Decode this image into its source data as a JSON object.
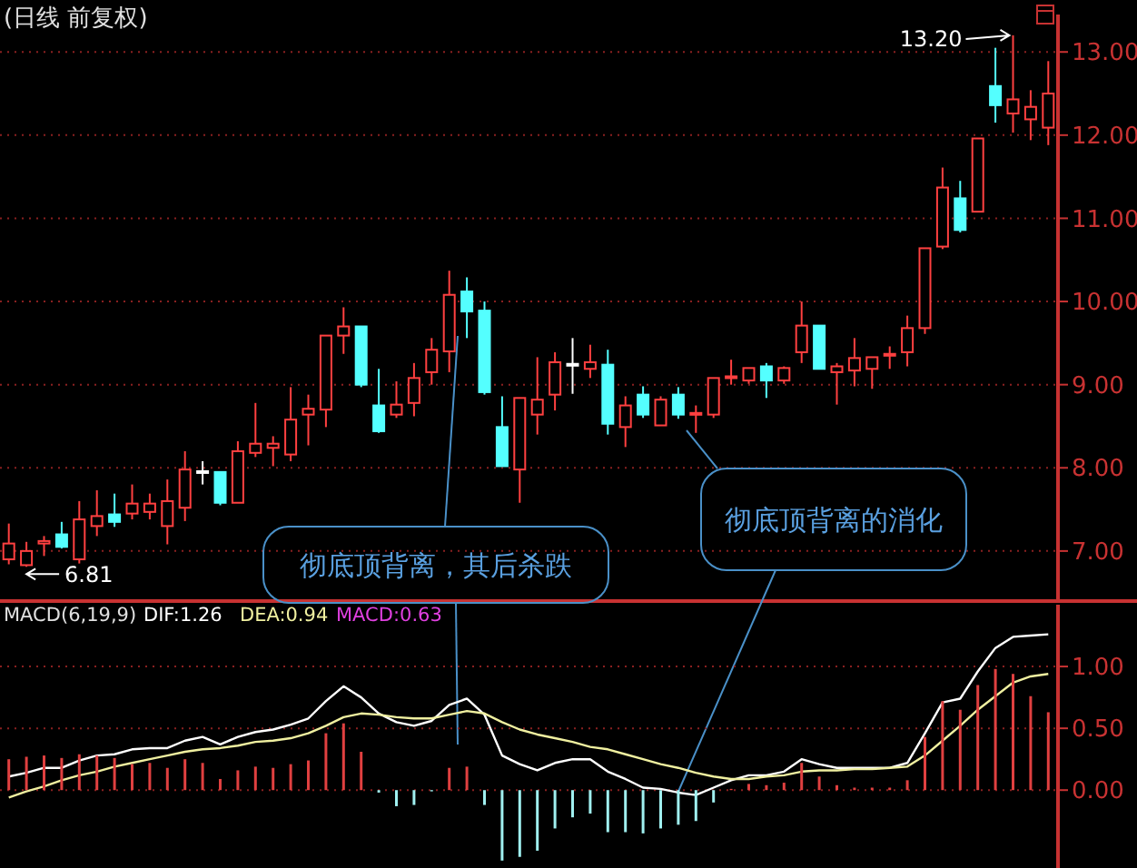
{
  "chart_data": [
    {
      "type": "candlestick",
      "title": "(日线 前复权)",
      "categories": [
        null,
        null,
        null,
        null,
        null,
        null,
        null,
        null,
        null,
        null,
        null,
        null,
        null,
        null,
        null,
        null,
        null,
        null,
        null,
        null,
        null,
        null,
        null,
        null,
        null,
        null,
        null,
        null,
        null,
        null,
        null,
        null,
        null,
        null,
        null,
        null,
        null,
        null,
        null,
        null,
        null,
        null,
        null,
        null,
        null,
        null,
        null,
        null,
        null,
        null,
        null,
        null,
        null,
        null,
        null,
        null,
        null,
        null,
        null,
        null
      ],
      "ohlc": [
        [
          6.9,
          7.33,
          6.84,
          7.09
        ],
        [
          6.83,
          7.11,
          6.81,
          7.0
        ],
        [
          7.09,
          7.18,
          6.94,
          7.12
        ],
        [
          7.2,
          7.35,
          7.03,
          7.05
        ],
        [
          6.9,
          7.6,
          6.85,
          7.38
        ],
        [
          7.3,
          7.73,
          7.18,
          7.42
        ],
        [
          7.44,
          7.69,
          7.29,
          7.35
        ],
        [
          7.45,
          7.8,
          7.38,
          7.57
        ],
        [
          7.47,
          7.69,
          7.38,
          7.57
        ],
        [
          7.3,
          7.86,
          7.08,
          7.6
        ],
        [
          7.52,
          8.2,
          7.36,
          7.98
        ],
        [
          7.96,
          8.08,
          7.8,
          7.95
        ],
        [
          7.95,
          7.95,
          7.55,
          7.58
        ],
        [
          7.58,
          8.32,
          7.58,
          8.2
        ],
        [
          8.18,
          8.78,
          8.13,
          8.29
        ],
        [
          8.24,
          8.38,
          8.02,
          8.29
        ],
        [
          8.16,
          8.97,
          8.08,
          8.58
        ],
        [
          8.64,
          8.88,
          8.27,
          8.71
        ],
        [
          8.7,
          9.59,
          8.49,
          9.59
        ],
        [
          9.59,
          9.93,
          9.37,
          9.7
        ],
        [
          9.7,
          9.7,
          8.97,
          9.0
        ],
        [
          8.75,
          9.19,
          8.42,
          8.44
        ],
        [
          8.64,
          9.04,
          8.6,
          8.76
        ],
        [
          8.78,
          9.26,
          8.62,
          9.08
        ],
        [
          9.15,
          9.56,
          9.0,
          9.42
        ],
        [
          9.4,
          10.37,
          9.15,
          10.08
        ],
        [
          10.12,
          10.29,
          9.56,
          9.88
        ],
        [
          9.89,
          10.0,
          8.88,
          8.91
        ],
        [
          8.49,
          8.86,
          8.02,
          8.02
        ],
        [
          7.98,
          8.84,
          7.58,
          8.84
        ],
        [
          8.64,
          9.33,
          8.4,
          8.82
        ],
        [
          8.88,
          9.39,
          8.69,
          9.27
        ],
        [
          9.25,
          9.56,
          8.89,
          9.24
        ],
        [
          9.19,
          9.48,
          9.08,
          9.27
        ],
        [
          9.24,
          9.42,
          8.4,
          8.53
        ],
        [
          8.49,
          8.86,
          8.25,
          8.75
        ],
        [
          8.88,
          8.98,
          8.6,
          8.64
        ],
        [
          8.51,
          8.86,
          8.51,
          8.82
        ],
        [
          8.88,
          8.97,
          8.59,
          8.64
        ],
        [
          8.64,
          8.75,
          8.42,
          8.66
        ],
        [
          8.64,
          9.08,
          8.6,
          9.08
        ],
        [
          9.08,
          9.3,
          9.0,
          9.1
        ],
        [
          9.05,
          9.2,
          9.01,
          9.2
        ],
        [
          9.22,
          9.26,
          8.84,
          9.05
        ],
        [
          9.05,
          9.22,
          9.01,
          9.2
        ],
        [
          9.39,
          10.0,
          9.26,
          9.71
        ],
        [
          9.71,
          9.71,
          9.19,
          9.19
        ],
        [
          9.15,
          9.26,
          8.76,
          9.22
        ],
        [
          9.17,
          9.56,
          8.98,
          9.32
        ],
        [
          9.19,
          9.33,
          8.95,
          9.33
        ],
        [
          9.35,
          9.46,
          9.19,
          9.37
        ],
        [
          9.39,
          9.83,
          9.22,
          9.68
        ],
        [
          9.68,
          10.64,
          9.61,
          10.64
        ],
        [
          10.66,
          11.61,
          10.63,
          11.37
        ],
        [
          11.24,
          11.45,
          10.83,
          10.86
        ],
        [
          11.08,
          11.96,
          11.08,
          11.96
        ],
        [
          12.59,
          13.05,
          12.15,
          12.36
        ],
        [
          12.26,
          13.2,
          12.03,
          12.43
        ],
        [
          12.19,
          12.54,
          11.94,
          12.34
        ],
        [
          12.09,
          12.89,
          11.88,
          12.5
        ]
      ],
      "colors": [
        "#ff4040",
        "#ff4040",
        "#ff4040",
        "#54ffff",
        "#ff4040",
        "#ff4040",
        "#54ffff",
        "#ff4040",
        "#ff4040",
        "#ff4040",
        "#ff4040",
        "#ffffff",
        "#54ffff",
        "#ff4040",
        "#ff4040",
        "#ff4040",
        "#ff4040",
        "#ff4040",
        "#ff4040",
        "#ff4040",
        "#54ffff",
        "#54ffff",
        "#ff4040",
        "#ff4040",
        "#ff4040",
        "#ff4040",
        "#54ffff",
        "#54ffff",
        "#54ffff",
        "#ff4040",
        "#ff4040",
        "#ff4040",
        "#ffffff",
        "#ff4040",
        "#54ffff",
        "#ff4040",
        "#54ffff",
        "#ff4040",
        "#54ffff",
        "#ff4040",
        "#ff4040",
        "#ff4040",
        "#ff4040",
        "#54ffff",
        "#ff4040",
        "#ff4040",
        "#54ffff",
        "#ff4040",
        "#ff4040",
        "#ff4040",
        "#ff4040",
        "#ff4040",
        "#ff4040",
        "#ff4040",
        "#54ffff",
        "#ff4040",
        "#54ffff",
        "#ff4040",
        "#ff4040",
        "#ff4040"
      ],
      "ylim": [
        6.42,
        13.45
      ],
      "yticks": [
        {
          "value": 7,
          "label": "7.00"
        },
        {
          "value": 8,
          "label": "8.00"
        },
        {
          "value": 9,
          "label": "9.00"
        },
        {
          "value": 10,
          "label": "10.00"
        },
        {
          "value": 11,
          "label": "11.00"
        },
        {
          "value": 12,
          "label": "12.00"
        },
        {
          "value": 13,
          "label": "13.00"
        }
      ],
      "grid": "y",
      "tick_labels": "y",
      "annotations": [
        "彻底顶背离，其后杀跌",
        "彻底顶背离的消化",
        "13.20",
        "6.81"
      ]
    },
    {
      "type": "bar",
      "title": "MACD(6,19,9)",
      "categories": [
        null,
        null,
        null,
        null,
        null,
        null,
        null,
        null,
        null,
        null,
        null,
        null,
        null,
        null,
        null,
        null,
        null,
        null,
        null,
        null,
        null,
        null,
        null,
        null,
        null,
        null,
        null,
        null,
        null,
        null,
        null,
        null,
        null,
        null,
        null,
        null,
        null,
        null,
        null,
        null,
        null,
        null,
        null,
        null,
        null,
        null,
        null,
        null,
        null,
        null,
        null,
        null,
        null,
        null,
        null,
        null,
        null,
        null,
        null,
        null
      ],
      "series": [
        {
          "type": "line",
          "name": "DIF:1.26",
          "color": "#ffffff",
          "values": [
            0.11,
            0.14,
            0.18,
            0.18,
            0.24,
            0.28,
            0.29,
            0.33,
            0.34,
            0.34,
            0.4,
            0.43,
            0.37,
            0.43,
            0.47,
            0.49,
            0.53,
            0.58,
            0.72,
            0.84,
            0.75,
            0.62,
            0.55,
            0.52,
            0.56,
            0.69,
            0.74,
            0.61,
            0.28,
            0.21,
            0.16,
            0.22,
            0.25,
            0.25,
            0.15,
            0.09,
            0.02,
            0.01,
            -0.02,
            -0.04,
            0.02,
            0.08,
            0.12,
            0.12,
            0.15,
            0.25,
            0.21,
            0.18,
            0.18,
            0.18,
            0.18,
            0.22,
            0.46,
            0.71,
            0.74,
            0.96,
            1.15,
            1.24,
            1.25,
            1.26
          ]
        },
        {
          "type": "line",
          "name": "DEA:0.94",
          "color": "#f0f0a0",
          "values": [
            -0.06,
            -0.01,
            0.03,
            0.08,
            0.12,
            0.15,
            0.19,
            0.22,
            0.25,
            0.28,
            0.31,
            0.33,
            0.34,
            0.36,
            0.39,
            0.4,
            0.42,
            0.46,
            0.52,
            0.59,
            0.62,
            0.61,
            0.59,
            0.58,
            0.58,
            0.61,
            0.64,
            0.62,
            0.55,
            0.49,
            0.45,
            0.42,
            0.39,
            0.35,
            0.33,
            0.29,
            0.25,
            0.21,
            0.18,
            0.14,
            0.11,
            0.09,
            0.09,
            0.11,
            0.12,
            0.15,
            0.16,
            0.16,
            0.17,
            0.17,
            0.18,
            0.19,
            0.28,
            0.4,
            0.52,
            0.65,
            0.76,
            0.87,
            0.92,
            0.94
          ]
        },
        {
          "type": "bar",
          "colors": [
            "#e04040",
            "#e04040",
            "#e04040",
            "#e04040",
            "#e04040",
            "#e04040",
            "#e04040",
            "#e04040",
            "#e04040",
            "#e04040",
            "#e04040",
            "#e04040",
            "#e04040",
            "#e04040",
            "#e04040",
            "#e04040",
            "#e04040",
            "#e04040",
            "#e04040",
            "#e04040",
            "#e04040",
            "#a0f0f0",
            "#a0f0f0",
            "#a0f0f0",
            "#a0f0f0",
            "#e04040",
            "#e04040",
            "#a0f0f0",
            "#a0f0f0",
            "#a0f0f0",
            "#a0f0f0",
            "#a0f0f0",
            "#a0f0f0",
            "#a0f0f0",
            "#a0f0f0",
            "#a0f0f0",
            "#a0f0f0",
            "#a0f0f0",
            "#a0f0f0",
            "#a0f0f0",
            "#a0f0f0",
            "#e04040",
            "#e04040",
            "#e04040",
            "#e04040",
            "#e04040",
            "#e04040",
            "#e04040",
            "#e04040",
            "#e04040",
            "#e04040",
            "#e04040",
            "#e04040",
            "#e04040",
            "#e04040",
            "#e04040",
            "#e04040",
            "#e04040",
            "#e04040",
            "#e04040"
          ],
          "values": [
            0.25,
            0.27,
            0.28,
            0.26,
            0.29,
            0.28,
            0.26,
            0.21,
            0.22,
            0.18,
            0.25,
            0.22,
            0.09,
            0.16,
            0.19,
            0.18,
            0.21,
            0.24,
            0.46,
            0.54,
            0.31,
            -0.02,
            -0.13,
            -0.12,
            -0.01,
            0.18,
            0.19,
            -0.12,
            -0.57,
            -0.54,
            -0.49,
            -0.31,
            -0.22,
            -0.19,
            -0.34,
            -0.34,
            -0.35,
            -0.31,
            -0.28,
            -0.25,
            -0.1,
            0.01,
            0.05,
            0.04,
            0.06,
            0.22,
            0.11,
            0.04,
            0.02,
            0.02,
            0.02,
            0.08,
            0.43,
            0.72,
            0.65,
            0.85,
            0.98,
            0.94,
            0.76,
            0.63
          ]
        }
      ],
      "ylim": [
        -0.63,
        1.5
      ],
      "yticks": [
        {
          "value": 0,
          "label": "0.00"
        },
        {
          "value": 0.5,
          "label": "0.50"
        },
        {
          "value": 1,
          "label": "1.00"
        }
      ],
      "grid": "y",
      "tick_labels": "y",
      "legend": "top left",
      "annotations": [
        "MACD:0.63"
      ]
    }
  ]
}
